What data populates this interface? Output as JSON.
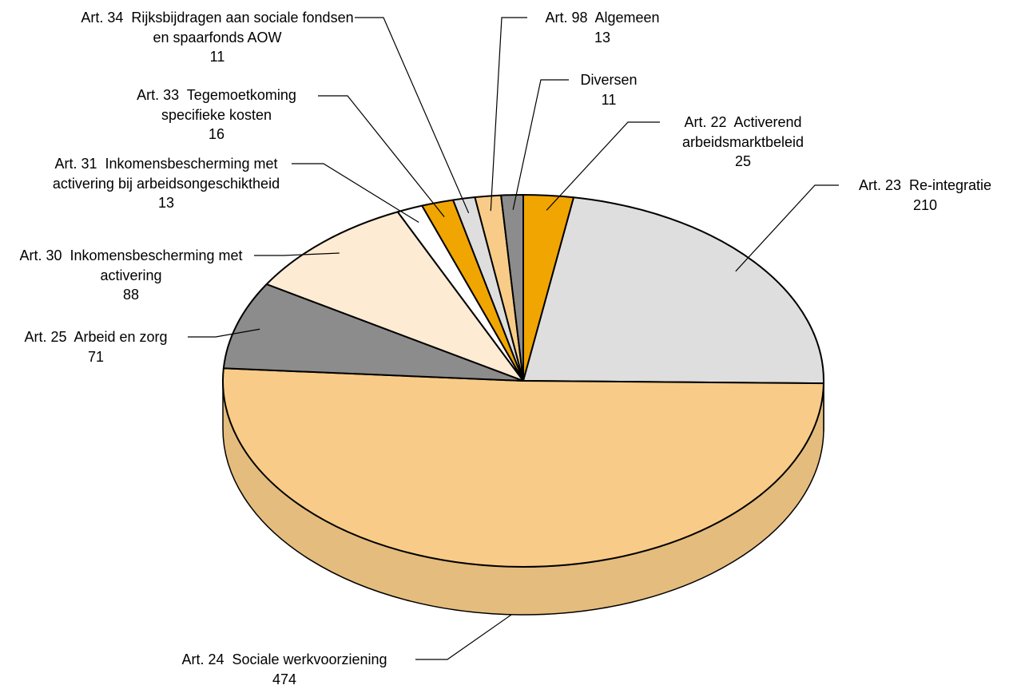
{
  "chart_data": {
    "type": "pie",
    "categories": [
      "Art. 22  Activerend arbeidsmarktbeleid",
      "Art. 23  Re-integratie",
      "Art. 24  Sociale werkvoorziening",
      "Art. 25  Arbeid en zorg",
      "Art. 30  Inkomensbescherming met activering",
      "Art. 31  Inkomensbescherming met activering bij arbeidsongeschiktheid",
      "Art. 33  Tegemoetkoming specifieke kosten",
      "Art. 34  Rijksbijdragen aan sociale fondsen en spaarfonds AOW",
      "Art. 98  Algemeen",
      "Diversen"
    ],
    "values": [
      25,
      210,
      474,
      71,
      88,
      13,
      16,
      11,
      13,
      11
    ],
    "colors": [
      "#f0a500",
      "#dedede",
      "#f8cc88",
      "#8c8c8c",
      "#fdebd3",
      "#ffffff",
      "#f0a500",
      "#dedede",
      "#f8cc88",
      "#8c8c8c"
    ]
  }
}
